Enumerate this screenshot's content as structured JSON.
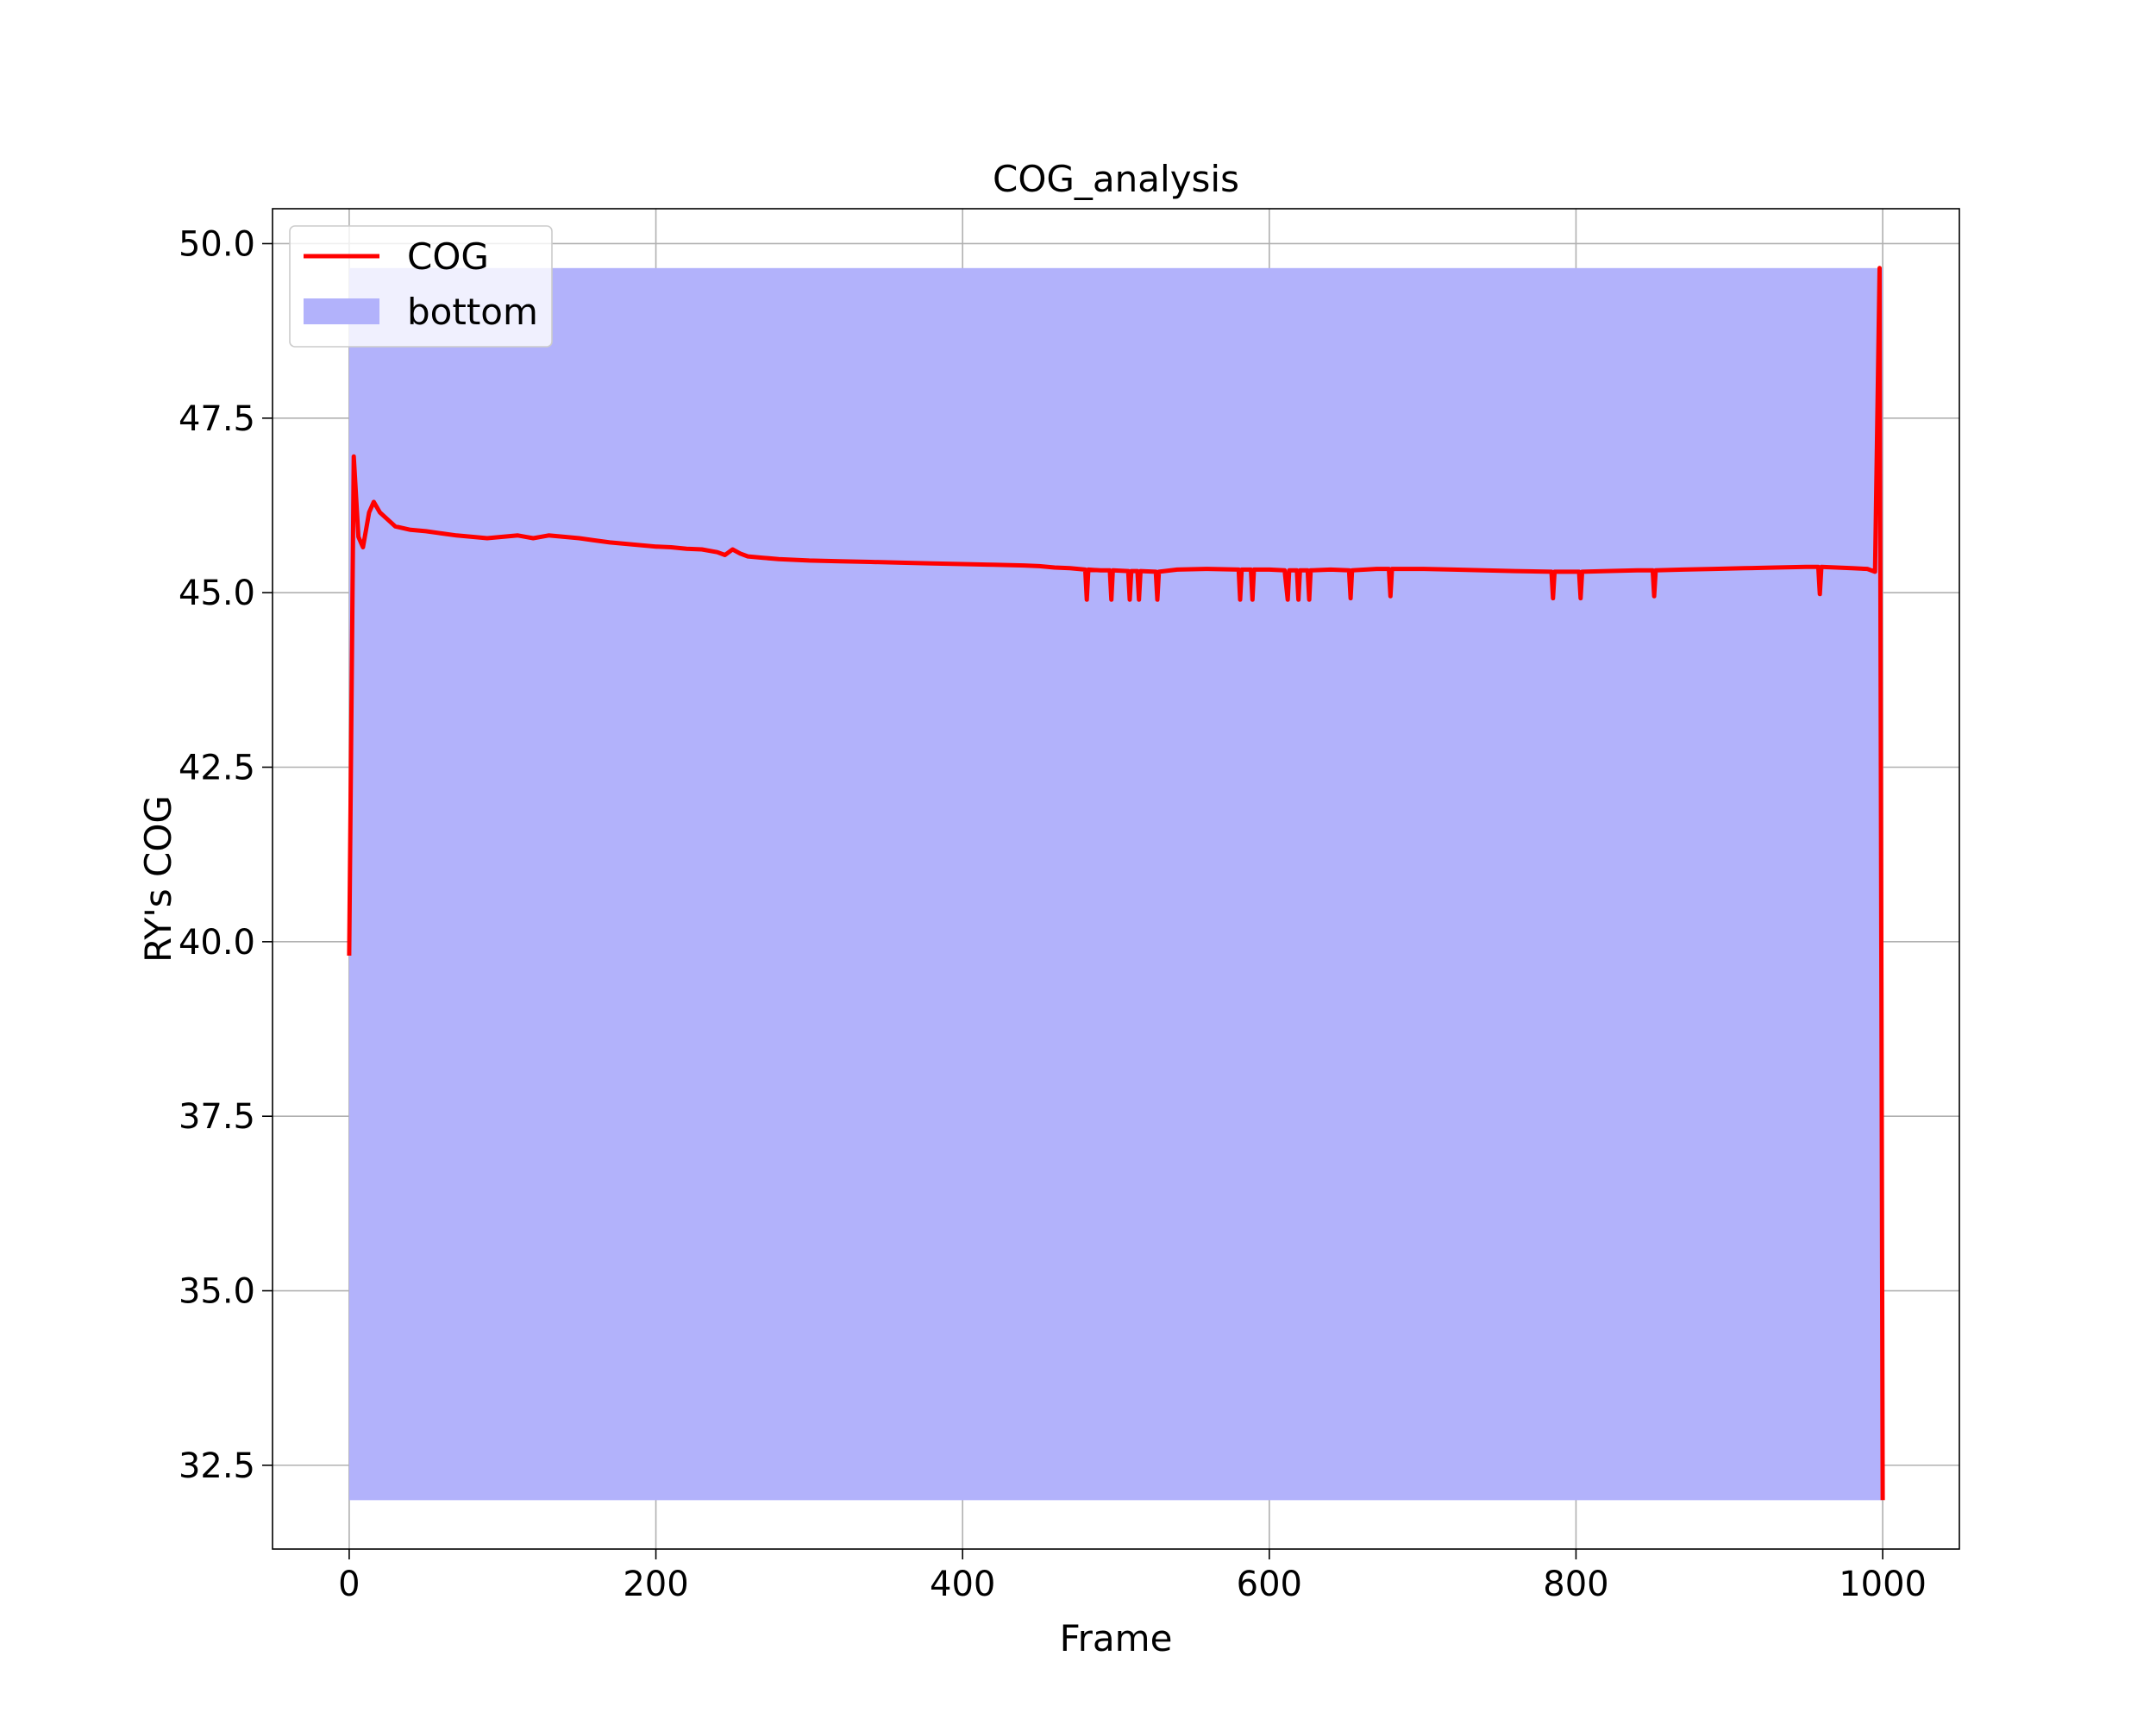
{
  "chart_data": {
    "type": "line",
    "title": "COG_analysis",
    "xlabel": "Frame",
    "ylabel": "RY's COG",
    "xlim": [
      -50,
      1050
    ],
    "ylim": [
      31.3,
      50.5
    ],
    "xticks": [
      0,
      200,
      400,
      600,
      800,
      1000
    ],
    "xtick_labels": [
      "0",
      "200",
      "400",
      "600",
      "800",
      "1000"
    ],
    "yticks": [
      32.5,
      35.0,
      37.5,
      40.0,
      42.5,
      45.0,
      47.5,
      50.0
    ],
    "ytick_labels": [
      "32.5",
      "35.0",
      "37.5",
      "40.0",
      "42.5",
      "45.0",
      "47.5",
      "50.0"
    ],
    "grid": true,
    "legend_position": "upper-left",
    "series": [
      {
        "name": "COG",
        "kind": "line",
        "color": "#ff0000",
        "x": [
          0,
          3,
          6,
          9,
          13,
          16,
          20,
          25,
          30,
          40,
          50,
          60,
          70,
          80,
          90,
          100,
          110,
          115,
          120,
          125,
          130,
          140,
          150,
          160,
          170,
          180,
          190,
          200,
          210,
          220,
          230,
          240,
          245,
          250,
          255,
          260,
          270,
          280,
          300,
          320,
          340,
          360,
          380,
          400,
          420,
          440,
          450,
          460,
          470,
          480,
          481,
          482,
          490,
          496,
          497,
          498,
          508,
          509,
          510,
          514,
          515,
          516,
          526,
          527,
          528,
          540,
          560,
          580,
          581,
          582,
          588,
          589,
          590,
          600,
          610,
          612,
          613,
          614,
          618,
          619,
          620,
          625,
          626,
          627,
          640,
          652,
          653,
          654,
          670,
          678,
          679,
          680,
          700,
          720,
          740,
          760,
          784,
          785,
          786,
          802,
          803,
          804,
          820,
          840,
          850,
          851,
          852,
          870,
          890,
          910,
          930,
          950,
          958,
          959,
          960,
          970,
          980,
          990,
          995,
          998,
          1000
        ],
        "y": [
          39.8,
          46.95,
          45.8,
          45.65,
          46.15,
          46.3,
          46.15,
          46.05,
          45.95,
          45.9,
          45.88,
          45.85,
          45.82,
          45.8,
          45.78,
          45.8,
          45.82,
          45.8,
          45.78,
          45.8,
          45.82,
          45.8,
          45.78,
          45.75,
          45.72,
          45.7,
          45.68,
          45.66,
          45.65,
          45.63,
          45.62,
          45.58,
          45.54,
          45.62,
          45.56,
          45.52,
          45.5,
          45.48,
          45.46,
          45.45,
          45.44,
          45.43,
          45.42,
          45.41,
          45.4,
          45.39,
          45.38,
          45.36,
          45.35,
          45.33,
          44.9,
          45.33,
          45.32,
          45.32,
          44.9,
          45.32,
          45.31,
          44.9,
          45.31,
          45.31,
          44.9,
          45.31,
          45.3,
          44.9,
          45.3,
          45.33,
          45.34,
          45.33,
          44.9,
          45.33,
          45.33,
          44.9,
          45.33,
          45.33,
          45.32,
          44.9,
          45.32,
          45.32,
          45.32,
          44.9,
          45.32,
          45.32,
          44.9,
          45.32,
          45.33,
          45.32,
          44.92,
          45.32,
          45.34,
          45.34,
          44.95,
          45.34,
          45.34,
          45.33,
          45.32,
          45.31,
          45.3,
          44.92,
          45.3,
          45.3,
          44.92,
          45.3,
          45.31,
          45.32,
          45.32,
          44.95,
          45.32,
          45.33,
          45.34,
          45.35,
          45.36,
          45.37,
          45.37,
          44.98,
          45.37,
          45.36,
          45.35,
          45.34,
          45.3,
          49.65,
          32.0
        ]
      },
      {
        "name": "bottom",
        "kind": "fill",
        "color": "#b2b2fb",
        "x_range": [
          0,
          1000
        ],
        "y_range": [
          32.0,
          49.65
        ]
      }
    ]
  }
}
